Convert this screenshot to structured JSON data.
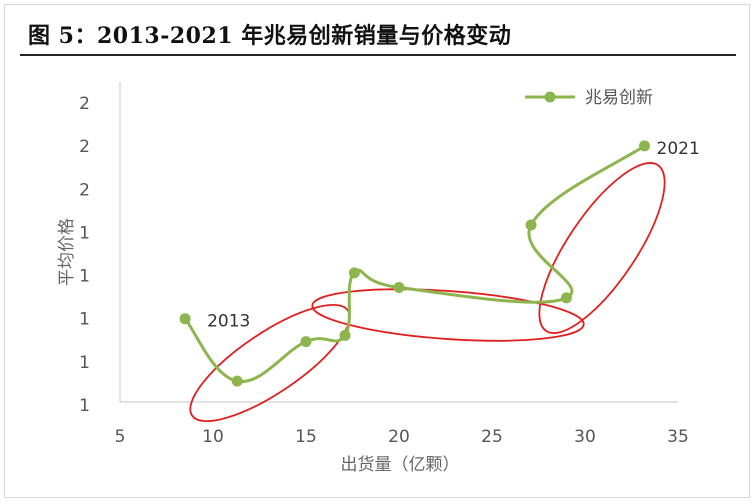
{
  "figure": {
    "title": "图 5：2013-2021 年兆易创新销量与价格变动"
  },
  "colors": {
    "series": "#8DB54E",
    "highlight": "#E0201F",
    "axis": "#D0D0D0",
    "title_rule": "#222222"
  },
  "chart_data": {
    "type": "line",
    "title": "",
    "xlabel": "出货量（亿颗）",
    "ylabel": "平均价格",
    "xlim": [
      5,
      35
    ],
    "x_ticks": [
      "5",
      "10",
      "15",
      "20",
      "25",
      "30",
      "35"
    ],
    "y_ticks": [
      "1",
      "1",
      "1",
      "1",
      "1",
      "2",
      "2",
      "2"
    ],
    "y_smooth": true,
    "grid": false,
    "legend": "top-right",
    "series": [
      {
        "name": "兆易创新",
        "color": "#8DB54E",
        "marker": "circle",
        "points": [
          {
            "x": 8.5,
            "y": 1.25
          },
          {
            "x": 11.3,
            "y": 0.95
          },
          {
            "x": 15.0,
            "y": 1.14
          },
          {
            "x": 17.1,
            "y": 1.17
          },
          {
            "x": 17.6,
            "y": 1.47
          },
          {
            "x": 20.0,
            "y": 1.4
          },
          {
            "x": 29.0,
            "y": 1.35
          },
          {
            "x": 27.1,
            "y": 1.7
          },
          {
            "x": 33.2,
            "y": 2.08
          }
        ]
      }
    ],
    "annotations": [
      {
        "text": "2013",
        "at_point": 0
      },
      {
        "text": "2021",
        "at_point": 8
      }
    ],
    "highlight_ellipses": 3
  }
}
